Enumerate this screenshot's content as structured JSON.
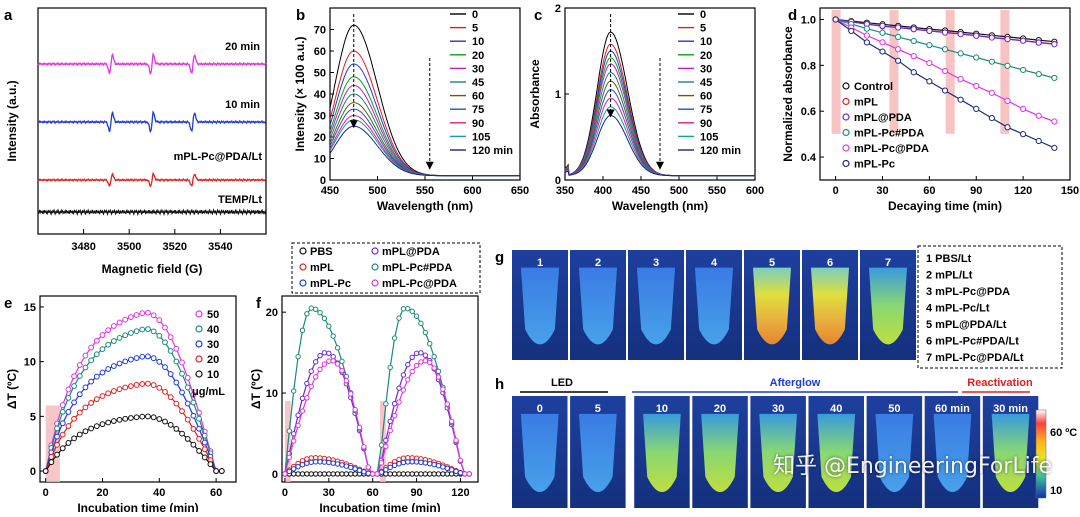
{
  "panels": {
    "a": {
      "label": "a",
      "ylabel": "Intensity (a.u.)",
      "xlabel": "Magnetic field (G)",
      "xticks": [
        "3480",
        "3500",
        "3520",
        "3540"
      ],
      "series_labels": [
        "20 min",
        "10 min",
        "mPL-Pc@PDA/Lt",
        "TEMP/Lt"
      ]
    },
    "b": {
      "label": "b"
    },
    "c": {
      "label": "c"
    },
    "d": {
      "label": "d"
    },
    "e": {
      "label": "e"
    },
    "f": {
      "label": "f"
    },
    "g": {
      "label": "g",
      "tube_numbers": [
        "1",
        "2",
        "3",
        "4",
        "5",
        "6",
        "7"
      ],
      "legend": [
        "1  PBS/Lt",
        "2  mPL/Lt",
        "3  mPL-Pc@PDA",
        "4  mPL-Pc/Lt",
        "5  mPL@PDA/Lt",
        "6  mPL-Pc#PDA/Lt",
        "7  mPL-Pc@PDA/Lt"
      ]
    },
    "h": {
      "label": "h",
      "groups": [
        "LED",
        "Afterglow",
        "Reactivation"
      ],
      "tube_labels": [
        "0",
        "5",
        "10",
        "20",
        "30",
        "40",
        "50",
        "60 min",
        "30 min"
      ],
      "colorbar_max": "60 ºC",
      "colorbar_min": "10"
    }
  },
  "ef_legend": [
    "PBS",
    "mPL",
    "mPL-Pc",
    "mPL@PDA",
    "mPL-Pc#PDA",
    "mPL-Pc@PDA"
  ],
  "watermark": "知乎 @EngineeringForLife",
  "colors": {
    "magenta": "#e233e0",
    "blue": "#1f3ad6",
    "red": "#e02020",
    "black": "#111111",
    "teal": "#1b8a7a",
    "navy": "#1f2a7a",
    "pink_bar": "#f6b8b8"
  },
  "chart_data": [
    {
      "panel": "b",
      "type": "line",
      "xlabel": "Wavelength (nm)",
      "ylabel": "Intensity (× 100 a.u.)",
      "xlim": [
        450,
        650
      ],
      "ylim": [
        0,
        80
      ],
      "xticks": [
        450,
        500,
        550,
        600,
        650
      ],
      "yticks": [
        0,
        10,
        20,
        30,
        40,
        50,
        60,
        70
      ],
      "series_names": [
        "0",
        "5",
        "10",
        "20",
        "30",
        "45",
        "60",
        "75",
        "90",
        "105",
        "120 min"
      ],
      "peak_x": 475,
      "peak_values": [
        72,
        60,
        54,
        48,
        44,
        40,
        36,
        33,
        30,
        28,
        25
      ],
      "baseline": 2
    },
    {
      "panel": "c",
      "type": "line",
      "xlabel": "Wavelength (nm)",
      "ylabel": "Absorbance",
      "xlim": [
        350,
        600
      ],
      "ylim": [
        0,
        2
      ],
      "xticks": [
        350,
        400,
        450,
        500,
        550,
        600
      ],
      "yticks": [
        0,
        1,
        2
      ],
      "series_names": [
        "0",
        "5",
        "10",
        "20",
        "30",
        "45",
        "60",
        "75",
        "90",
        "105",
        "120 min"
      ],
      "peak_x": 410,
      "peak_values": [
        1.72,
        1.58,
        1.5,
        1.42,
        1.35,
        1.25,
        1.15,
        1.05,
        0.95,
        0.85,
        0.75
      ],
      "baseline": 0.05
    },
    {
      "panel": "d",
      "type": "line",
      "xlabel": "Decaying time (min)",
      "ylabel": "Normalized absorbance",
      "xlim": [
        -10,
        150
      ],
      "ylim": [
        0.3,
        1.05
      ],
      "xticks": [
        0,
        30,
        60,
        90,
        120,
        150
      ],
      "yticks": [
        0.4,
        0.6,
        0.8,
        1.0
      ],
      "x": [
        0,
        10,
        20,
        30,
        40,
        50,
        60,
        70,
        80,
        90,
        100,
        110,
        120,
        130,
        140
      ],
      "series": [
        {
          "name": "Control",
          "values": [
            1,
            0.993,
            0.986,
            0.979,
            0.972,
            0.965,
            0.958,
            0.952,
            0.945,
            0.938,
            0.931,
            0.924,
            0.917,
            0.91,
            0.903
          ]
        },
        {
          "name": "mPL",
          "values": [
            1,
            0.99,
            0.98,
            0.97,
            0.965,
            0.957,
            0.95,
            0.944,
            0.937,
            0.93,
            0.922,
            0.915,
            0.908,
            0.9,
            0.893
          ]
        },
        {
          "name": "mPL@PDA",
          "values": [
            1,
            0.99,
            0.98,
            0.972,
            0.965,
            0.958,
            0.95,
            0.943,
            0.936,
            0.929,
            0.921,
            0.914,
            0.907,
            0.899,
            0.892
          ]
        },
        {
          "name": "mPL-Pc#PDA",
          "values": [
            1,
            0.98,
            0.96,
            0.942,
            0.924,
            0.906,
            0.888,
            0.87,
            0.852,
            0.834,
            0.816,
            0.798,
            0.78,
            0.762,
            0.745
          ]
        },
        {
          "name": "mPL-Pc@PDA",
          "values": [
            1,
            0.965,
            0.93,
            0.9,
            0.87,
            0.84,
            0.81,
            0.775,
            0.74,
            0.71,
            0.68,
            0.645,
            0.61,
            0.58,
            0.555
          ]
        },
        {
          "name": "mPL-Pc",
          "values": [
            1,
            0.95,
            0.9,
            0.86,
            0.82,
            0.77,
            0.73,
            0.69,
            0.65,
            0.61,
            0.57,
            0.53,
            0.5,
            0.47,
            0.44
          ]
        }
      ]
    },
    {
      "panel": "e",
      "type": "line",
      "xlabel": "Incubation time (min)",
      "ylabel": "ΔT (ºC)",
      "xlim": [
        -2,
        67
      ],
      "ylim": [
        -1,
        16
      ],
      "xticks": [
        0,
        20,
        40,
        60
      ],
      "yticks": [
        0,
        5,
        10,
        15
      ],
      "series": [
        {
          "name": "50",
          "peak": 14.5
        },
        {
          "name": "40",
          "peak": 13
        },
        {
          "name": "30",
          "peak": 10.5
        },
        {
          "name": "20",
          "peak": 8
        },
        {
          "name": "10",
          "peak": 5
        }
      ],
      "unit": "μg/mL"
    },
    {
      "panel": "f",
      "type": "line",
      "xlabel": "Incubation time (min)",
      "ylabel": "ΔT (ºC)",
      "xlim": [
        -2,
        132
      ],
      "ylim": [
        -1,
        22
      ],
      "xticks": [
        0,
        30,
        60,
        90,
        120
      ],
      "yticks": [
        0,
        10,
        20
      ],
      "series": [
        {
          "name": "PBS",
          "peak": 0
        },
        {
          "name": "mPL",
          "peak": 2
        },
        {
          "name": "mPL-Pc",
          "peak": 1.5
        },
        {
          "name": "mPL@PDA",
          "peak": 15
        },
        {
          "name": "mPL-Pc#PDA",
          "peak": 20.5
        },
        {
          "name": "mPL-Pc@PDA",
          "peak": 14
        }
      ]
    }
  ]
}
